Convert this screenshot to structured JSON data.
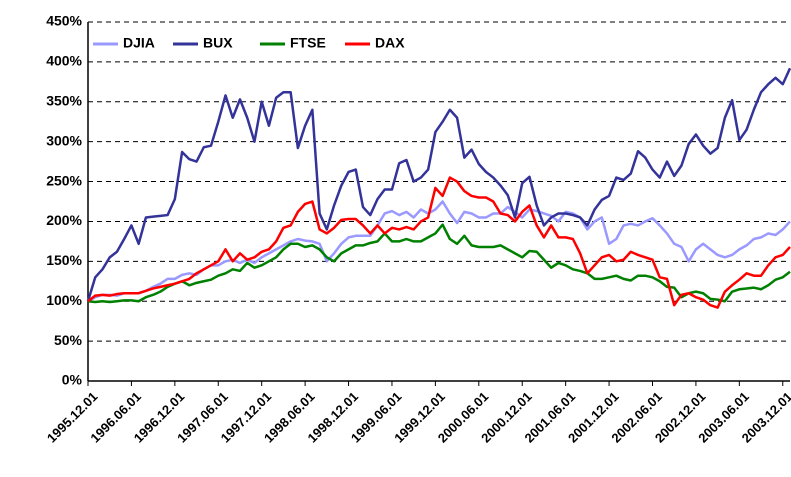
{
  "chart_data": {
    "type": "line",
    "categories": [
      "1995.12.01",
      null,
      null,
      null,
      null,
      null,
      "1996.06.01",
      null,
      null,
      null,
      null,
      null,
      "1996.12.01",
      null,
      null,
      null,
      null,
      null,
      "1997.06.01",
      null,
      null,
      null,
      null,
      null,
      "1997.12.01",
      null,
      null,
      null,
      null,
      null,
      "1998.06.01",
      null,
      null,
      null,
      null,
      null,
      "1998.12.01",
      null,
      null,
      null,
      null,
      null,
      "1999.06.01",
      null,
      null,
      null,
      null,
      null,
      "1999.12.01",
      null,
      null,
      null,
      null,
      null,
      "2000.06.01",
      null,
      null,
      null,
      null,
      null,
      "2000.12.01",
      null,
      null,
      null,
      null,
      null,
      "2001.06.01",
      null,
      null,
      null,
      null,
      null,
      "2001.12.01",
      null,
      null,
      null,
      null,
      null,
      "2002.06.01",
      null,
      null,
      null,
      null,
      null,
      "2002.12.01",
      null,
      null,
      null,
      null,
      null,
      "2003.06.01",
      null,
      null,
      null,
      null,
      null,
      "2003.12.01",
      null
    ],
    "series": [
      {
        "name": "DJIA",
        "color": "#9999ff",
        "values": [
          100,
          105,
          108,
          108,
          107,
          110,
          110,
          110,
          113,
          118,
          122,
          128,
          128,
          133,
          135,
          133,
          140,
          145,
          145,
          150,
          152,
          148,
          152,
          148,
          155,
          160,
          165,
          170,
          175,
          178,
          176,
          175,
          172,
          150,
          160,
          172,
          180,
          182,
          182,
          182,
          195,
          210,
          213,
          208,
          212,
          205,
          215,
          210,
          215,
          225,
          210,
          198,
          212,
          210,
          205,
          205,
          210,
          210,
          218,
          212,
          205,
          215,
          213,
          210,
          207,
          200,
          212,
          210,
          205,
          190,
          200,
          205,
          172,
          178,
          195,
          197,
          195,
          200,
          204,
          195,
          185,
          172,
          168,
          150,
          165,
          172,
          165,
          158,
          155,
          158,
          165,
          170,
          178,
          180,
          185,
          183,
          190,
          200
        ]
      },
      {
        "name": "BUX",
        "color": "#333399",
        "values": [
          100,
          130,
          140,
          155,
          162,
          178,
          195,
          172,
          205,
          206,
          207,
          208,
          228,
          287,
          278,
          275,
          293,
          295,
          325,
          358,
          330,
          353,
          330,
          300,
          350,
          320,
          355,
          362,
          362,
          292,
          320,
          340,
          210,
          190,
          220,
          245,
          262,
          265,
          218,
          208,
          228,
          240,
          240,
          273,
          277,
          250,
          255,
          265,
          312,
          325,
          340,
          330,
          280,
          290,
          272,
          262,
          255,
          245,
          233,
          205,
          248,
          256,
          220,
          195,
          205,
          210,
          210,
          208,
          205,
          195,
          215,
          227,
          232,
          255,
          252,
          260,
          288,
          280,
          265,
          255,
          275,
          257,
          270,
          297,
          309,
          295,
          285,
          292,
          330,
          352,
          302,
          315,
          340,
          362,
          372,
          380,
          372,
          392
        ]
      },
      {
        "name": "FTSE",
        "color": "#008000",
        "values": [
          100,
          99,
          100,
          99,
          100,
          101,
          101,
          100,
          105,
          108,
          112,
          118,
          122,
          125,
          120,
          123,
          125,
          127,
          132,
          135,
          140,
          138,
          148,
          142,
          145,
          150,
          155,
          165,
          172,
          172,
          168,
          170,
          165,
          155,
          150,
          160,
          165,
          170,
          170,
          173,
          175,
          185,
          175,
          175,
          178,
          175,
          175,
          180,
          185,
          196,
          178,
          172,
          182,
          170,
          168,
          168,
          168,
          170,
          165,
          160,
          155,
          163,
          162,
          152,
          142,
          148,
          145,
          140,
          138,
          135,
          128,
          128,
          130,
          132,
          128,
          126,
          132,
          132,
          130,
          125,
          118,
          117,
          105,
          110,
          112,
          110,
          103,
          102,
          100,
          112,
          115,
          116,
          117,
          115,
          120,
          127,
          130,
          137
        ]
      },
      {
        "name": "DAX",
        "color": "#ff0000",
        "values": [
          100,
          107,
          108,
          107,
          109,
          110,
          110,
          110,
          113,
          116,
          118,
          120,
          122,
          125,
          128,
          135,
          140,
          145,
          150,
          165,
          150,
          160,
          152,
          155,
          162,
          165,
          175,
          192,
          195,
          212,
          222,
          225,
          190,
          185,
          192,
          202,
          203,
          203,
          195,
          185,
          195,
          185,
          192,
          190,
          193,
          190,
          200,
          205,
          242,
          232,
          255,
          250,
          238,
          232,
          230,
          230,
          225,
          210,
          208,
          200,
          212,
          220,
          195,
          180,
          195,
          180,
          180,
          178,
          160,
          135,
          145,
          155,
          158,
          150,
          152,
          162,
          158,
          155,
          152,
          130,
          128,
          95,
          108,
          110,
          105,
          102,
          95,
          92,
          112,
          120,
          127,
          135,
          132,
          132,
          145,
          155,
          158,
          168
        ]
      }
    ],
    "ylim": [
      0,
      450
    ],
    "yticks": [
      {
        "value": 0,
        "label": "0%"
      },
      {
        "value": 50,
        "label": "50%"
      },
      {
        "value": 100,
        "label": "100%"
      },
      {
        "value": 150,
        "label": "150%"
      },
      {
        "value": 200,
        "label": "200%"
      },
      {
        "value": 250,
        "label": "250%"
      },
      {
        "value": 300,
        "label": "300%"
      },
      {
        "value": 350,
        "label": "350%"
      },
      {
        "value": 400,
        "label": "400%"
      },
      {
        "value": 450,
        "label": "450%"
      }
    ],
    "grid": true,
    "legend": "upper left"
  }
}
